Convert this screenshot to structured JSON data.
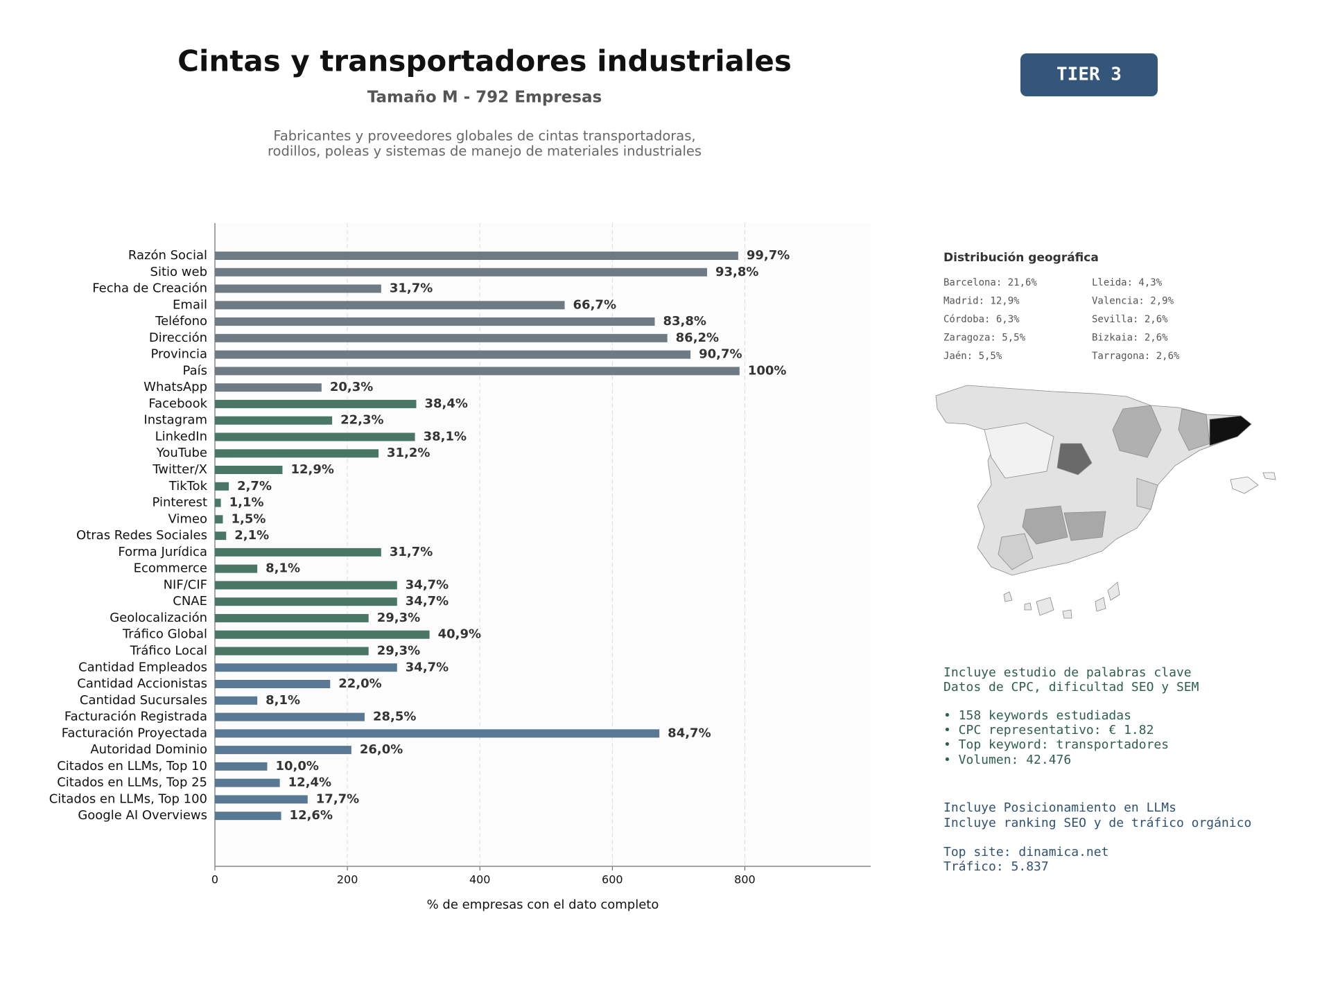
{
  "header": {
    "title": "Cintas y transportadores industriales",
    "subtitle": "Tamaño M - 792 Empresas",
    "description": [
      "Fabricantes y proveedores globales de cintas transportadoras,",
      "rodillos, poleas y sistemas de manejo de materiales industriales"
    ],
    "tier": "TIER 3"
  },
  "geo": {
    "title": "Distribución geográfica",
    "left": [
      "Barcelona: 21,6%",
      "Madrid: 12,9%",
      "Córdoba: 6,3%",
      "Zaragoza: 5,5%",
      "Jaén: 5,5%"
    ],
    "right": [
      "Lleida: 4,3%",
      "Valencia: 2,9%",
      "Sevilla: 2,6%",
      "Bizkaia: 2,6%",
      "Tarragona: 2,6%"
    ]
  },
  "notes": {
    "seo": [
      "Incluye estudio de palabras clave",
      "Datos de CPC, dificultad SEO y SEM",
      "• 158 keywords estudiadas",
      "• CPC representativo: € 1.82",
      "• Top keyword: transportadores",
      "• Volumen: 42.476"
    ],
    "llm": [
      "Incluye Posicionamiento en LLMs",
      "Incluye ranking SEO y de tráfico orgánico",
      "Top site: dinamica.net",
      "Tráfico: 5.837"
    ]
  },
  "chart_data": {
    "type": "barh",
    "xlabel": "% de empresas con el dato completo",
    "categories": [
      "Razón Social",
      "Sitio web",
      "Fecha de Creación",
      "Email",
      "Teléfono",
      "Dirección",
      "Provincia",
      "País",
      "WhatsApp",
      "Facebook",
      "Instagram",
      "LinkedIn",
      "YouTube",
      "Twitter/X",
      "TikTok",
      "Pinterest",
      "Vimeo",
      "Otras Redes Sociales",
      "Forma Jurídica",
      "Ecommerce",
      "NIF/CIF",
      "CNAE",
      "Geolocalización",
      "Tráfico Global",
      "Tráfico Local",
      "Cantidad Empleados",
      "Cantidad Accionistas",
      "Cantidad Sucursales",
      "Facturación Registrada",
      "Facturación Proyectada",
      "Autoridad Dominio",
      "Citados en LLMs, Top 10",
      "Citados en LLMs, Top 25",
      "Citados en LLMs, Top 100",
      "Google AI Overviews"
    ],
    "values": [
      790,
      743,
      251,
      528,
      664,
      683,
      718,
      792,
      161,
      304,
      177,
      302,
      247,
      102,
      21,
      9,
      12,
      17,
      251,
      64,
      275,
      275,
      232,
      324,
      232,
      275,
      174,
      64,
      226,
      671,
      206,
      79,
      98,
      140,
      100
    ],
    "value_labels": [
      "99,7%",
      "93,8%",
      "31,7%",
      "66,7%",
      "83,8%",
      "86,2%",
      "90,7%",
      "100%",
      "20,3%",
      "38,4%",
      "22,3%",
      "38,1%",
      "31,2%",
      "12,9%",
      "2,7%",
      "1,1%",
      "1,5%",
      "2,1%",
      "31,7%",
      "8,1%",
      "34,7%",
      "34,7%",
      "29,3%",
      "40,9%",
      "29,3%",
      "34,7%",
      "22,0%",
      "8,1%",
      "28,5%",
      "84,7%",
      "26,0%",
      "10,0%",
      "12,4%",
      "17,7%",
      "12,6%"
    ],
    "colors": [
      "#6e7a84",
      "#6e7a84",
      "#6e7a84",
      "#6e7a84",
      "#6e7a84",
      "#6e7a84",
      "#6e7a84",
      "#6e7a84",
      "#6e7a84",
      "#4a7765",
      "#4a7765",
      "#4a7765",
      "#4a7765",
      "#4a7765",
      "#4a7765",
      "#4a7765",
      "#4a7765",
      "#4a7765",
      "#4a7765",
      "#4a7765",
      "#4a7765",
      "#4a7765",
      "#4a7765",
      "#4a7765",
      "#4a7765",
      "#587893",
      "#587893",
      "#587893",
      "#587893",
      "#587893",
      "#587893",
      "#587893",
      "#587893",
      "#587893",
      "#587893"
    ],
    "xlim": [
      0,
      990
    ],
    "xticks": [
      0,
      200,
      400,
      600,
      800
    ],
    "grid": true
  }
}
